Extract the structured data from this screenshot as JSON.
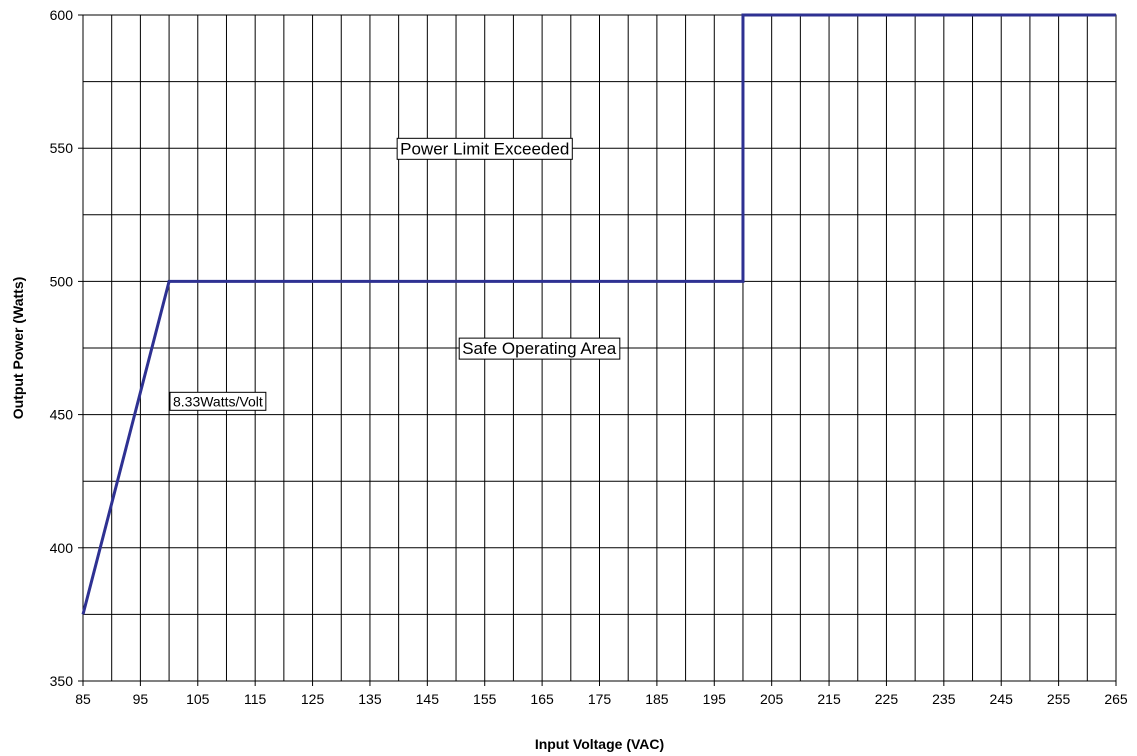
{
  "chart_data": {
    "type": "line",
    "title": "",
    "xlabel": "Input Voltage (VAC)",
    "ylabel": "Output Power (Watts)",
    "xlim": [
      85,
      265
    ],
    "ylim": [
      350,
      600
    ],
    "x_ticks": [
      85,
      95,
      105,
      115,
      125,
      135,
      145,
      155,
      165,
      175,
      185,
      195,
      205,
      215,
      225,
      235,
      245,
      255,
      265
    ],
    "y_ticks": [
      350,
      400,
      450,
      500,
      550,
      600
    ],
    "x_grid_step": 5,
    "y_grid_step": 25,
    "grid": true,
    "series": [
      {
        "color": "#2e3192",
        "points": [
          [
            85,
            375
          ],
          [
            100,
            500
          ],
          [
            200,
            500
          ],
          [
            200,
            600
          ],
          [
            265,
            600
          ]
        ]
      }
    ],
    "annotations": [
      {
        "text": "Power Limit Exceeded",
        "x": 155,
        "y": 550
      },
      {
        "text": "Safe Operating Area",
        "x": 164.5,
        "y": 475
      },
      {
        "text": "8.33Watts/Volt",
        "x": 108.5,
        "y": 455
      }
    ]
  }
}
